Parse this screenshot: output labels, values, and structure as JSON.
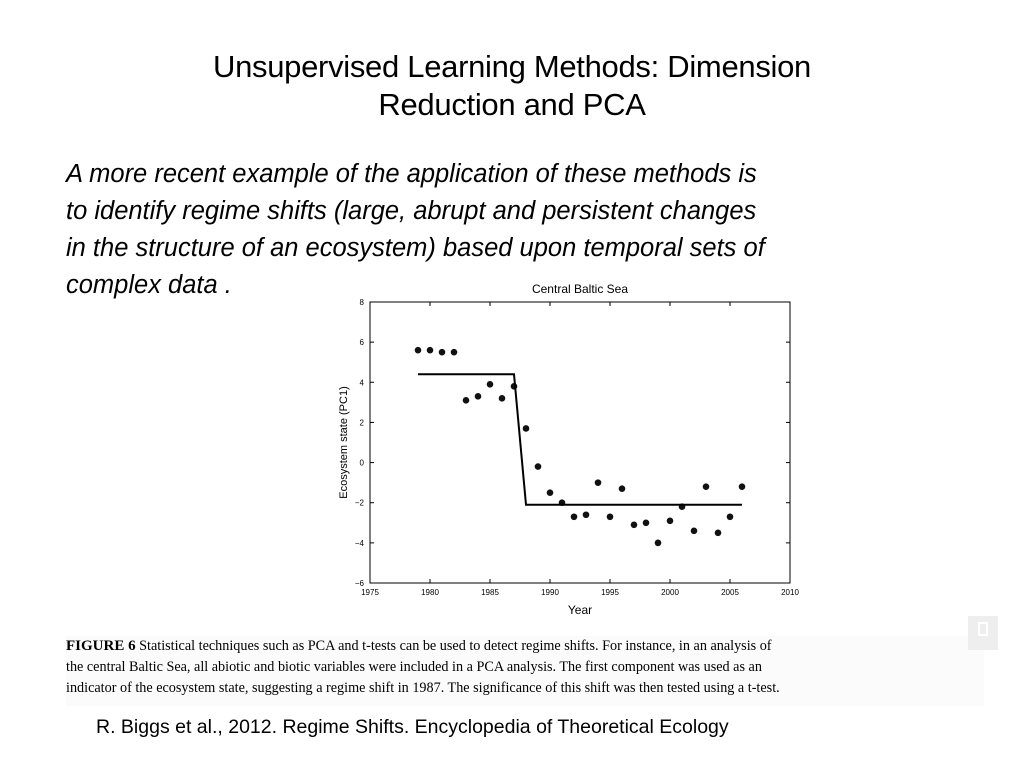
{
  "slide": {
    "title_lines": [
      "Unsupervised Learning Methods: Dimension",
      "Reduction and  PCA"
    ],
    "body_lines": [
      "A more recent example of the application of these methods is",
      "to identify regime shifts (large, abrupt and persistent changes",
      "in the structure of an ecosystem) based upon temporal sets of",
      "complex data ."
    ],
    "reference": "R. Biggs et al., 2012. Regime Shifts. Encyclopedia of Theoretical Ecology"
  },
  "caption": {
    "label": "FIGURE 6",
    "line1": " Statistical techniques such as PCA and t-tests can be used to detect regime shifts. For instance, in an analysis of",
    "line2": "the central Baltic Sea, all abiotic and biotic variables were included in a PCA analysis. The first component was used as an",
    "line3": "indicator of the ecosystem state, suggesting a regime shift in 1987. The significance of this shift was then tested using a t-test."
  },
  "chart_data": {
    "type": "scatter",
    "title": "Central Baltic Sea",
    "xlabel": "Year",
    "ylabel": "Ecosystem state (PC1)",
    "xlim": [
      1975,
      2010
    ],
    "ylim": [
      -6,
      8
    ],
    "xticks": [
      1975,
      1980,
      1985,
      1990,
      1995,
      2000,
      2005,
      2010
    ],
    "yticks": [
      -6,
      -4,
      -2,
      0,
      2,
      4,
      6,
      8
    ],
    "grid": false,
    "series": [
      {
        "kind": "points",
        "x": [
          1979,
          1980,
          1981,
          1982,
          1983,
          1984,
          1985,
          1986,
          1987,
          1988,
          1989,
          1990,
          1991,
          1992,
          1993,
          1994,
          1995,
          1996,
          1997,
          1998,
          1999,
          2000,
          2001,
          2002,
          2003,
          2004,
          2005,
          2006
        ],
        "y": [
          5.6,
          5.6,
          5.5,
          5.5,
          3.1,
          3.3,
          3.9,
          3.2,
          3.8,
          1.7,
          -0.2,
          -1.5,
          -2.0,
          -2.7,
          -2.6,
          -1.0,
          -2.7,
          -1.3,
          -3.1,
          -3.0,
          -4.0,
          -2.9,
          -2.2,
          -3.4,
          -1.2,
          -3.5,
          -2.7,
          -1.2
        ]
      },
      {
        "kind": "step-line",
        "x": [
          1979,
          1987,
          1988,
          2006
        ],
        "y": [
          4.4,
          4.4,
          -2.1,
          -2.1
        ]
      }
    ]
  }
}
